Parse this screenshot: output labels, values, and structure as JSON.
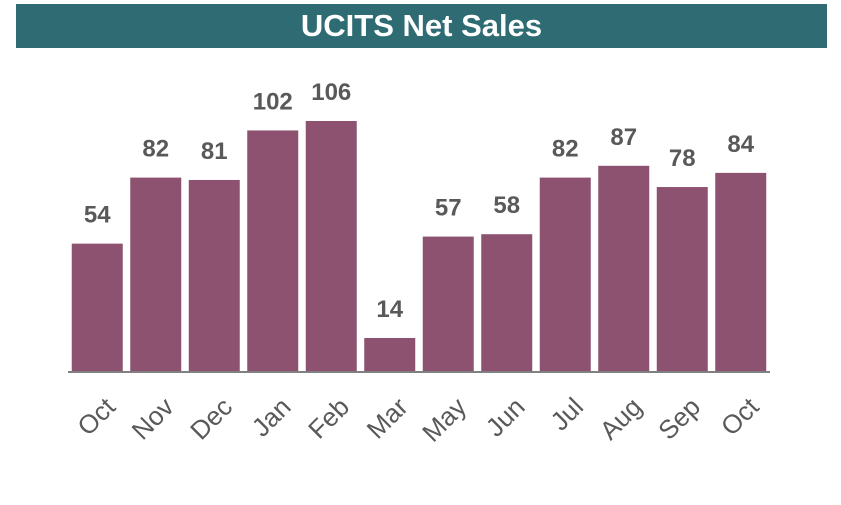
{
  "colors": {
    "title_background": "#2e6b73",
    "bar_fill": "#8c5270",
    "axis": "#808080",
    "label_text": "#595959"
  },
  "chart_data": {
    "type": "bar",
    "title": "UCITS Net Sales",
    "categories": [
      "Oct",
      "Nov",
      "Dec",
      "Jan",
      "Feb",
      "Mar",
      "May",
      "Jun",
      "Jul",
      "Aug",
      "Sep",
      "Oct"
    ],
    "values": [
      54,
      82,
      81,
      102,
      106,
      14,
      57,
      58,
      82,
      87,
      78,
      84
    ],
    "data_labels": [
      "54",
      "82",
      "81",
      "102",
      "106",
      "14",
      "57",
      "58",
      "82",
      "87",
      "78",
      "84"
    ],
    "ylim": [
      0,
      106
    ],
    "grid": false,
    "legend": "none",
    "xlabel": "",
    "ylabel": ""
  }
}
